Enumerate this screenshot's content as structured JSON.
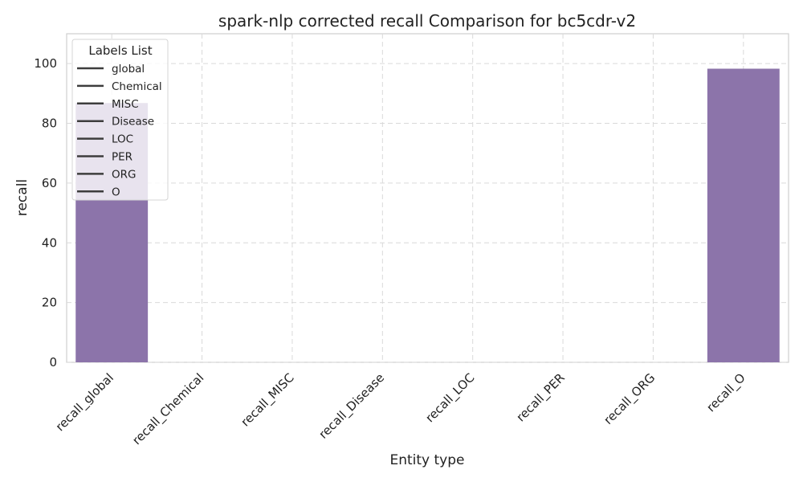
{
  "chart_data": {
    "type": "bar",
    "title": "spark-nlp corrected recall Comparison for bc5cdr-v2",
    "xlabel": "Entity type",
    "ylabel": "recall",
    "categories": [
      "recall_global",
      "recall_Chemical",
      "recall_MISC",
      "recall_Disease",
      "recall_LOC",
      "recall_PER",
      "recall_ORG",
      "recall_O"
    ],
    "values": [
      86.8,
      0,
      0,
      0,
      0,
      0,
      0,
      98.3
    ],
    "ylim": [
      0,
      110
    ],
    "yticks": [
      0,
      20,
      40,
      60,
      80,
      100
    ],
    "grid": true,
    "bar_color": "#8c74aa",
    "legend": {
      "title": "Labels List",
      "placement": "top-left",
      "entries": [
        "global",
        "Chemical",
        "MISC",
        "Disease",
        "LOC",
        "PER",
        "ORG",
        "O"
      ]
    }
  }
}
